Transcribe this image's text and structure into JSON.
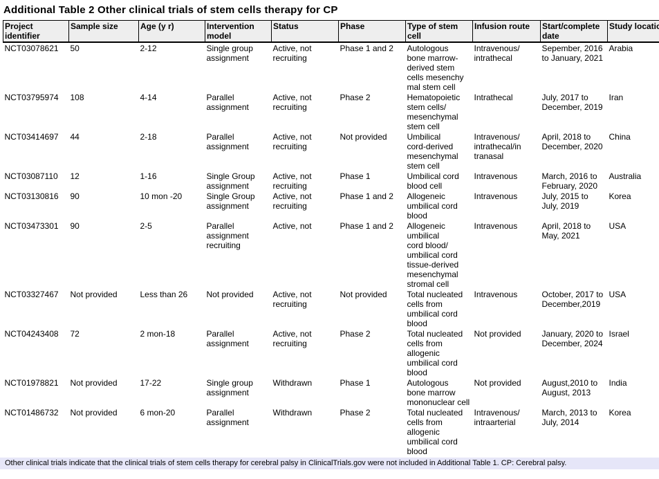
{
  "title": "Additional Table 2 Other clinical trials of stem cells therapy for CP",
  "footnote": "Other clinical trials indicate that the clinical trials of stem cells therapy for cerebral palsy in ClinicalTrials.gov were not included in Additional Table 1. CP: Cerebral palsy.",
  "colors": {
    "header_bg": "#eeeeee",
    "footnote_bg": "#e6e6f8",
    "border": "#000000",
    "text": "#000000"
  },
  "table": {
    "columns": [
      {
        "key": "project_identifier",
        "label": "Project\nidentifier"
      },
      {
        "key": "sample_size",
        "label": "Sample size"
      },
      {
        "key": "age_yr",
        "label": "Age (y r)"
      },
      {
        "key": "intervention_model",
        "label": "Intervention\nmodel"
      },
      {
        "key": "status",
        "label": "Status"
      },
      {
        "key": "phase",
        "label": "Phase"
      },
      {
        "key": "type_of_stem_cell",
        "label": "Type of stem\ncell"
      },
      {
        "key": "infusion_route",
        "label": "Infusion route"
      },
      {
        "key": "start_complete_date",
        "label": "Start/complete\ndate"
      },
      {
        "key": "study_location",
        "label": "Study location"
      }
    ],
    "rows": [
      [
        "NCT03078621",
        "50",
        "2-12",
        "Single group\nassignment",
        "Active, not\nrecruiting",
        "Phase 1 and 2",
        "Autologous\nbone marrow-\nderived stem\ncells mesenchy\nmal stem cell",
        "Intravenous/\nintrathecal",
        "Sepember, 2016\nto January, 2021",
        "Arabia"
      ],
      [
        "NCT03795974",
        "108",
        "4-14",
        "Parallel\nassignment",
        "Active, not\nrecruiting",
        "Phase 2",
        "Hematopoietic\nstem cells/\nmesenchymal\nstem cell",
        "Intrathecal",
        "July, 2017 to\nDecember, 2019",
        "Iran"
      ],
      [
        "NCT03414697",
        "44",
        "2-18",
        "Parallel\nassignment",
        "Active, not\nrecruiting",
        "Not provided",
        "Umbilical\ncord-derived\nmesenchymal\nstem cell",
        "Intravenous/\nintrathecal/in\ntranasal",
        "April, 2018 to\nDecember, 2020",
        "China"
      ],
      [
        "NCT03087110",
        "12",
        "1-16",
        "Single Group\nassignment",
        "Active, not\nrecruiting",
        "Phase 1",
        "Umbilical cord\nblood cell",
        "Intravenous",
        "March, 2016 to\nFebruary, 2020",
        "Australia"
      ],
      [
        "NCT03130816",
        "90",
        "10 mon -20",
        "Single Group\nassignment",
        "Active, not\nrecruiting",
        "Phase 1 and 2",
        "Allogeneic\numbilical cord\nblood",
        "Intravenous",
        "July, 2015 to\nJuly, 2019",
        "Korea"
      ],
      [
        "NCT03473301",
        "90",
        "2-5",
        "Parallel\nassignment\nrecruiting",
        "Active, not",
        "Phase 1 and 2",
        "Allogeneic\numbilical\ncord blood/\numbilical cord\ntissue-derived\nmesenchymal\nstromal cell",
        "Intravenous",
        "April, 2018 to\nMay, 2021",
        "USA"
      ],
      [
        "NCT03327467",
        "Not provided",
        "Less than 26",
        "Not provided",
        "Active, not\nrecruiting",
        "Not provided",
        "Total nucleated\ncells from\numbilical cord\nblood",
        "Intravenous",
        "October, 2017 to\nDecember,2019",
        "USA"
      ],
      [
        "NCT04243408",
        "72",
        "2 mon-18",
        "Parallel\nassignment",
        "Active, not\nrecruiting",
        "Phase 2",
        "Total nucleated\ncells from\nallogenic\numbilical cord\nblood",
        "Not provided",
        "January, 2020 to\nDecember, 2024",
        "Israel"
      ],
      [
        "NCT01978821",
        "Not provided",
        "17-22",
        "Single group\nassignment",
        "Withdrawn",
        "Phase 1",
        "Autologous\nbone marrow\nmononuclear cell",
        "Not provided",
        "August,2010 to\nAugust, 2013",
        "India"
      ],
      [
        "NCT01486732",
        "Not provided",
        "6 mon-20",
        "Parallel\nassignment",
        "Withdrawn",
        "Phase 2",
        "Total nucleated\ncells from\nallogenic\numbilical cord\nblood",
        "Intravenous/\nintraarterial",
        "March, 2013 to\nJuly, 2014",
        "Korea"
      ]
    ]
  }
}
